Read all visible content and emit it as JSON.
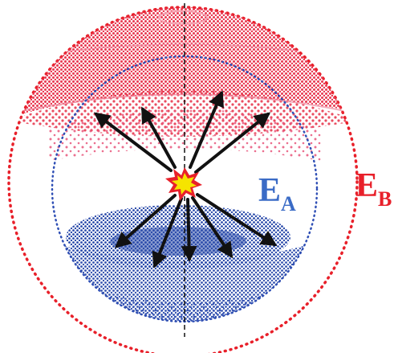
{
  "labels": {
    "inner_sphere": {
      "main": "E",
      "sub": "A",
      "color": "#3a6bc6"
    },
    "outer_sphere": {
      "main": "E",
      "sub": "B",
      "color": "#e8202a"
    }
  },
  "colors": {
    "outer_sphere": "#e8202a",
    "outer_cap": "#e8384e",
    "inner_sphere": "#2f4fb5",
    "inner_cap": "#2a4aaa",
    "arrow": "#111111",
    "burst_outer": "#e8202a",
    "burst_inner": "#f6e400"
  },
  "arrows": {
    "upward_count": 4,
    "downward_count": 5
  }
}
